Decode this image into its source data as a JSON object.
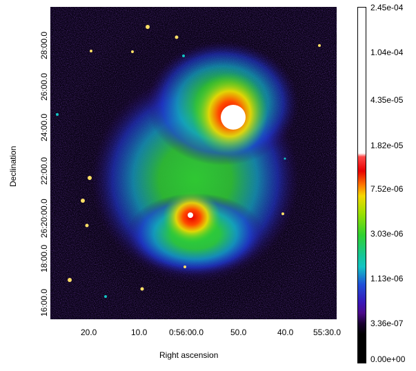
{
  "image": {
    "axes": {
      "x_label": "Right ascension",
      "y_label": "Declination",
      "x_ticks": [
        "20.0",
        "10.0",
        "0:56:00.0",
        "50.0",
        "40.0",
        "55:30.0"
      ],
      "y_ticks": [
        "16:00.0",
        "18:00.0",
        "26:20:00.0",
        "22:00.0",
        "24:00.0",
        "26:00.0",
        "28:00.0"
      ]
    },
    "colorbar": {
      "ticks": [
        "2.45e-04",
        "1.04e-04",
        "4.35e-05",
        "1.82e-05",
        "7.52e-06",
        "3.03e-06",
        "1.13e-06",
        "3.36e-07",
        "0.00e+00"
      ]
    },
    "colors": {
      "background": "#000000",
      "low": "#2a0a6e",
      "mid_blue": "#1f4fd8",
      "cyan": "#12c4c4",
      "green": "#2fd12f",
      "yellow": "#f5d800",
      "orange": "#ff7a00",
      "red": "#e80000",
      "white": "#ffffff"
    }
  }
}
